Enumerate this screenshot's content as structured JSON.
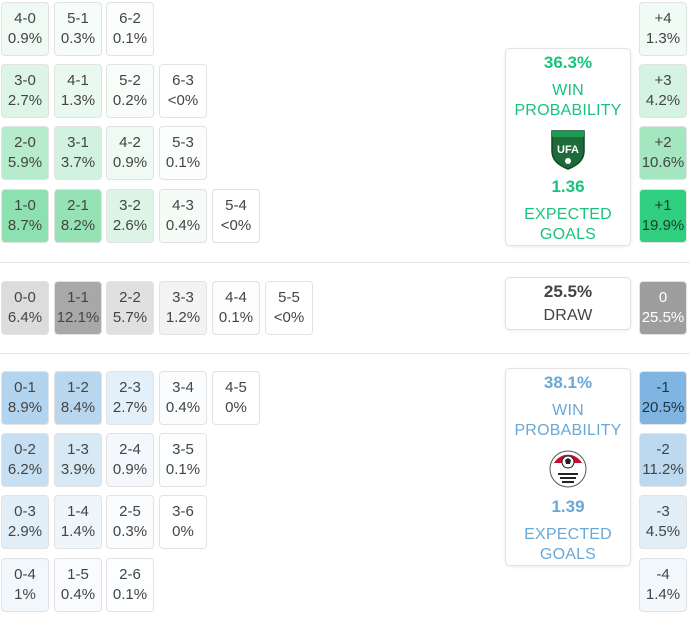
{
  "colors": {
    "home_accent": "#19c37d",
    "away_accent": "#6aa8d6",
    "draw_text": "#444444"
  },
  "home_scores": [
    {
      "score": "4-0",
      "pct": "0.9%",
      "bg": "#eefaf3"
    },
    {
      "score": "5-1",
      "pct": "0.3%",
      "bg": "#f6fcf9"
    },
    {
      "score": "6-2",
      "pct": "0.1%",
      "bg": "#fbfefc"
    },
    {
      "score": "3-0",
      "pct": "2.7%",
      "bg": "#ddf5e7"
    },
    {
      "score": "4-1",
      "pct": "1.3%",
      "bg": "#eaf9f0"
    },
    {
      "score": "5-2",
      "pct": "0.2%",
      "bg": "#f8fdfa"
    },
    {
      "score": "6-3",
      "pct": "<0%",
      "bg": "#ffffff"
    },
    {
      "score": "2-0",
      "pct": "5.9%",
      "bg": "#b6ebcb"
    },
    {
      "score": "3-1",
      "pct": "3.7%",
      "bg": "#d1f2df"
    },
    {
      "score": "4-2",
      "pct": "0.9%",
      "bg": "#eefaf3"
    },
    {
      "score": "5-3",
      "pct": "0.1%",
      "bg": "#fbfefc"
    },
    {
      "score": "1-0",
      "pct": "8.7%",
      "bg": "#8de0af"
    },
    {
      "score": "2-1",
      "pct": "8.2%",
      "bg": "#95e2b5"
    },
    {
      "score": "3-2",
      "pct": "2.6%",
      "bg": "#ddf5e7"
    },
    {
      "score": "4-3",
      "pct": "0.4%",
      "bg": "#f5fcf8"
    },
    {
      "score": "5-4",
      "pct": "<0%",
      "bg": "#ffffff"
    }
  ],
  "draw_scores": [
    {
      "score": "0-0",
      "pct": "6.4%",
      "bg": "#dcdcdc"
    },
    {
      "score": "1-1",
      "pct": "12.1%",
      "bg": "#a8a8a8"
    },
    {
      "score": "2-2",
      "pct": "5.7%",
      "bg": "#e0e0e0"
    },
    {
      "score": "3-3",
      "pct": "1.2%",
      "bg": "#f3f3f3"
    },
    {
      "score": "4-4",
      "pct": "0.1%",
      "bg": "#fdfdfd"
    },
    {
      "score": "5-5",
      "pct": "<0%",
      "bg": "#ffffff"
    }
  ],
  "away_scores": [
    {
      "score": "0-1",
      "pct": "8.9%",
      "bg": "#b3d4ee"
    },
    {
      "score": "1-2",
      "pct": "8.4%",
      "bg": "#b8d7ef"
    },
    {
      "score": "2-3",
      "pct": "2.7%",
      "bg": "#e4f0f9"
    },
    {
      "score": "3-4",
      "pct": "0.4%",
      "bg": "#fafcfe"
    },
    {
      "score": "4-5",
      "pct": "0%",
      "bg": "#ffffff"
    },
    {
      "score": "0-2",
      "pct": "6.2%",
      "bg": "#c6dff2"
    },
    {
      "score": "1-3",
      "pct": "3.9%",
      "bg": "#d8e9f6"
    },
    {
      "score": "2-4",
      "pct": "0.9%",
      "bg": "#f4f8fc"
    },
    {
      "score": "3-5",
      "pct": "0.1%",
      "bg": "#fdfeff"
    },
    {
      "score": "0-3",
      "pct": "2.9%",
      "bg": "#e2eef8"
    },
    {
      "score": "1-4",
      "pct": "1.4%",
      "bg": "#eef5fb"
    },
    {
      "score": "2-5",
      "pct": "0.3%",
      "bg": "#fafcfe"
    },
    {
      "score": "3-6",
      "pct": "0%",
      "bg": "#ffffff"
    },
    {
      "score": "0-4",
      "pct": "1%",
      "bg": "#f2f7fc"
    },
    {
      "score": "1-5",
      "pct": "0.4%",
      "bg": "#f9fbfe"
    },
    {
      "score": "2-6",
      "pct": "0.1%",
      "bg": "#fdfeff"
    }
  ],
  "margins": [
    {
      "label": "+4",
      "pct": "1.3%",
      "bg": "#f0fbf5",
      "fg": "#444444"
    },
    {
      "label": "+3",
      "pct": "4.2%",
      "bg": "#d5f3e2",
      "fg": "#444444"
    },
    {
      "label": "+2",
      "pct": "10.6%",
      "bg": "#a4e6bf",
      "fg": "#444444"
    },
    {
      "label": "+1",
      "pct": "19.9%",
      "bg": "#2fcf7f",
      "fg": "#1a3d2a"
    },
    {
      "label": "0",
      "pct": "25.5%",
      "bg": "#9e9e9e",
      "fg": "#ffffff"
    },
    {
      "label": "-1",
      "pct": "20.5%",
      "bg": "#7fb5e0",
      "fg": "#1e3446"
    },
    {
      "label": "-2",
      "pct": "11.2%",
      "bg": "#bcd9f0",
      "fg": "#444444"
    },
    {
      "label": "-3",
      "pct": "4.5%",
      "bg": "#e1eef8",
      "fg": "#444444"
    },
    {
      "label": "-4",
      "pct": "1.4%",
      "bg": "#f3f8fc",
      "fg": "#444444"
    }
  ],
  "home_card": {
    "win_pct": "36.3%",
    "win_label_1": "WIN",
    "win_label_2": "PROBABILITY",
    "xg": "1.36",
    "xg_label_1": "EXPECTED",
    "xg_label_2": "GOALS",
    "crest_text": "UFA",
    "crest_icon": "uzbekistan-fa-crest-icon"
  },
  "draw_card": {
    "pct": "25.5%",
    "label": "DRAW"
  },
  "away_card": {
    "win_pct": "38.1%",
    "win_label_1": "WIN",
    "win_label_2": "PROBABILITY",
    "xg": "1.39",
    "xg_label_1": "EXPECTED",
    "xg_label_2": "GOALS",
    "crest_icon": "egypt-fa-crest-icon"
  }
}
